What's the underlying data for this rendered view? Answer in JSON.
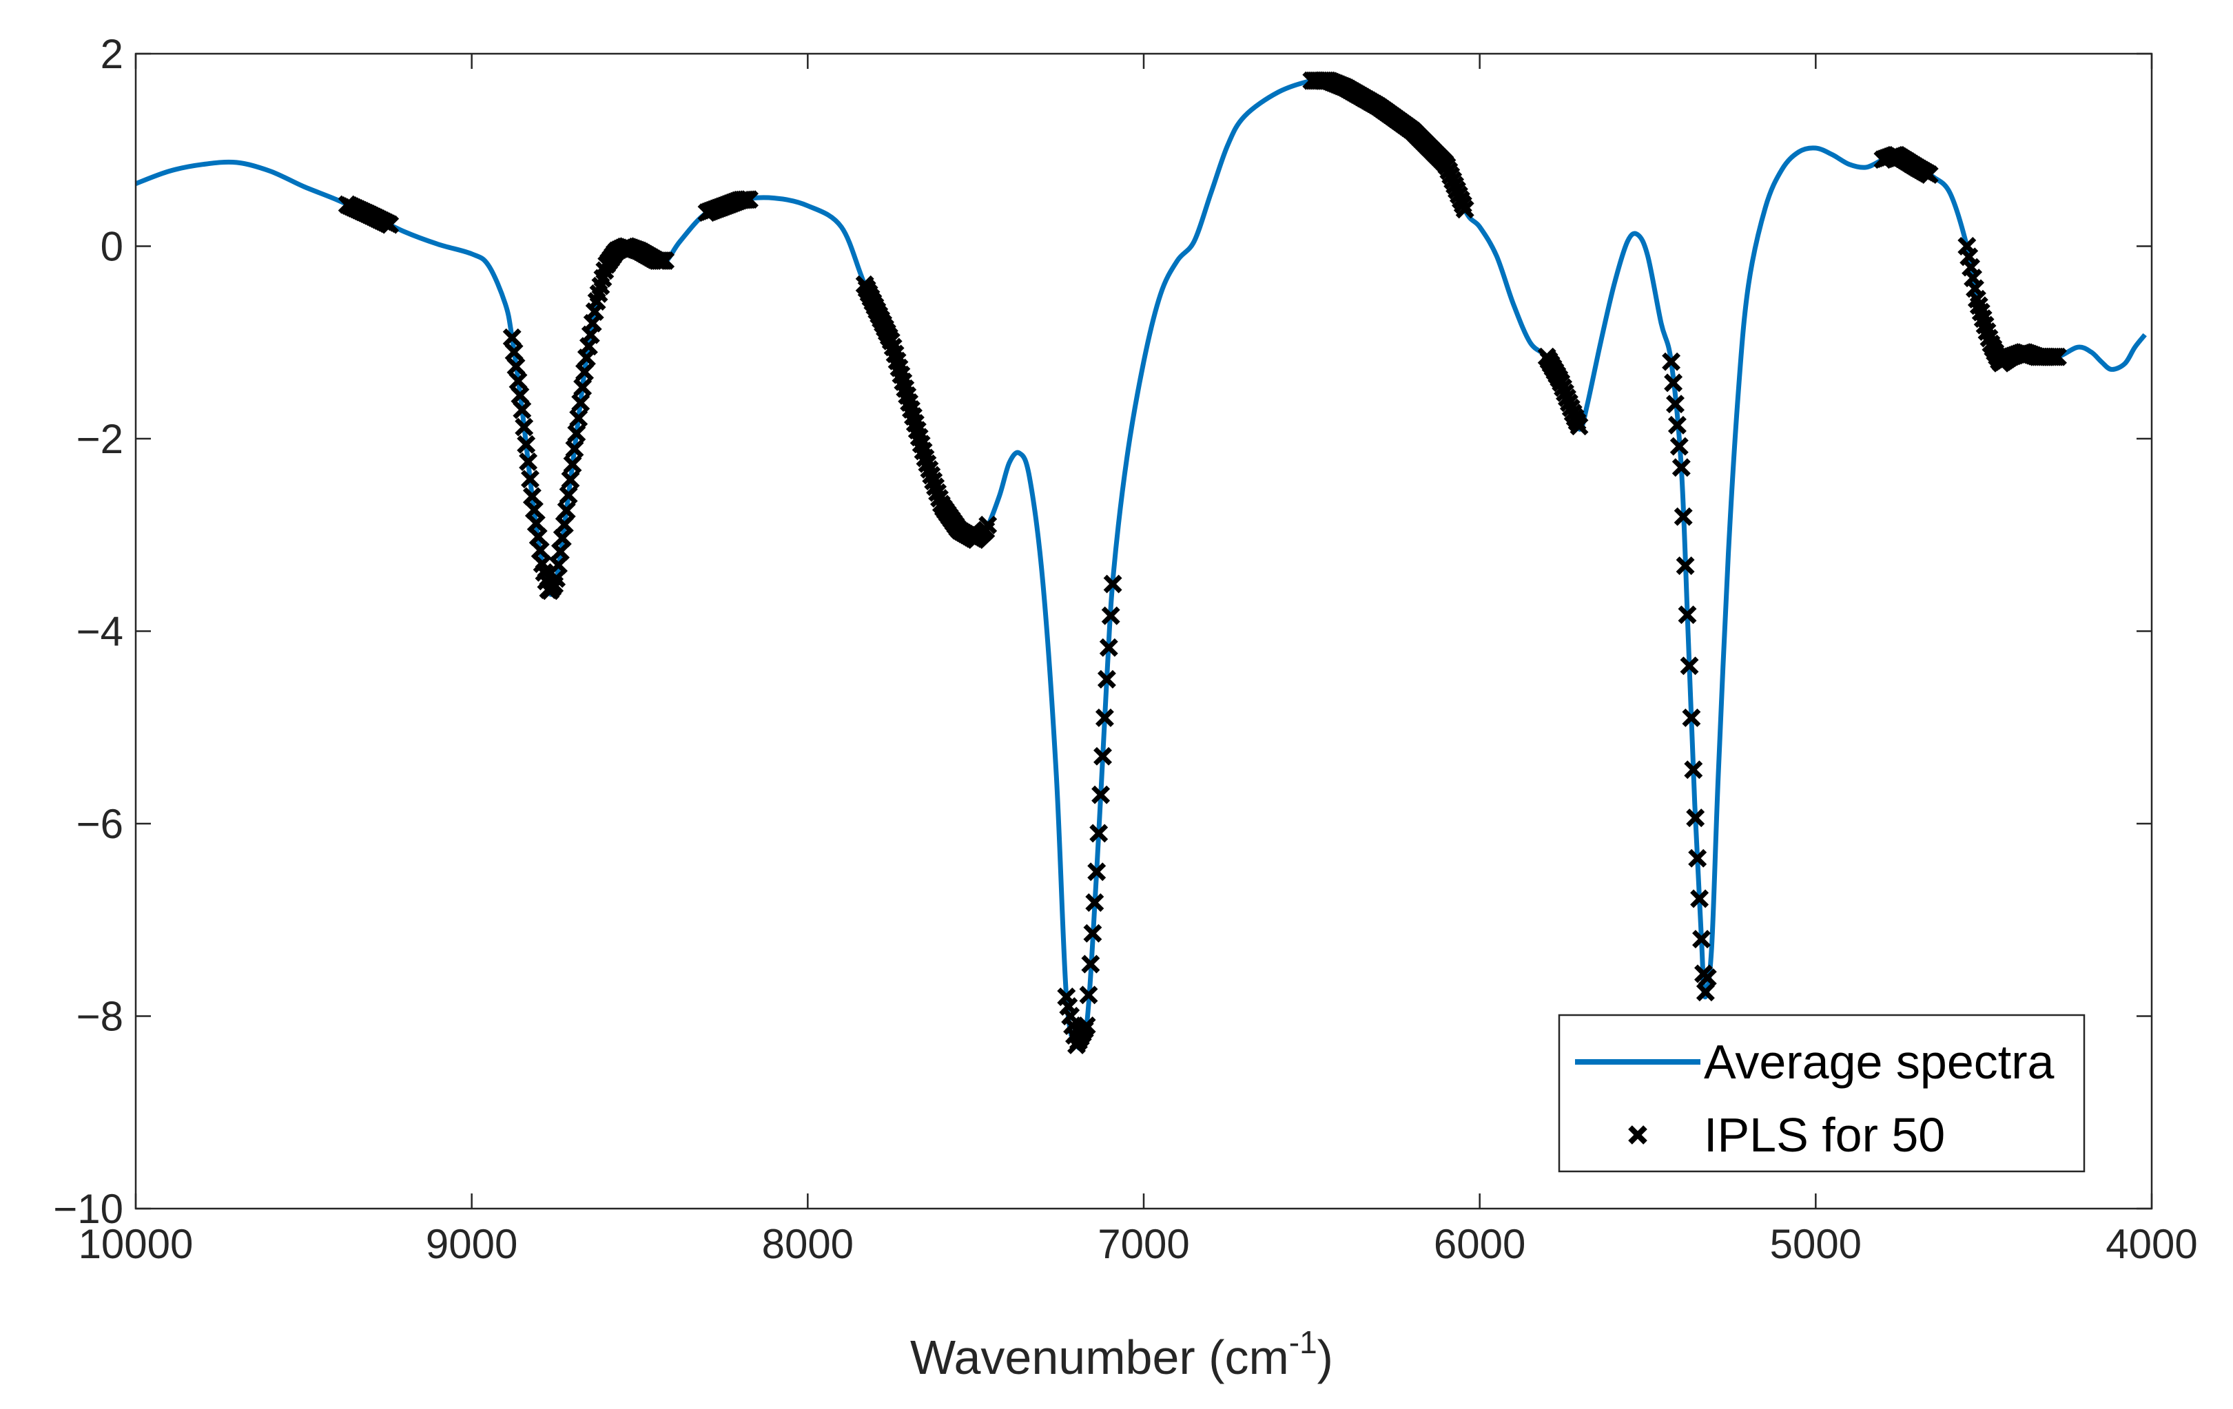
{
  "chart_data": {
    "type": "line",
    "title": "",
    "xlabel": "Wavenumber (cm",
    "xlabel_sup": "-1",
    "xlabel_close": ")",
    "ylabel": "",
    "xlim": [
      10000,
      4000
    ],
    "ylim": [
      -10,
      2
    ],
    "x_reversed": true,
    "xticks": [
      10000,
      9000,
      8000,
      7000,
      6000,
      5000,
      4000
    ],
    "xtick_labels": [
      "10000",
      "9000",
      "8000",
      "7000",
      "6000",
      "5000",
      "4000"
    ],
    "yticks": [
      2,
      0,
      -2,
      -4,
      -6,
      -8,
      -10
    ],
    "ytick_labels": [
      "2",
      "0",
      "−2",
      "−4",
      "−6",
      "−8",
      "−10"
    ],
    "grid": false,
    "legend_position": "bottom-right",
    "series": [
      {
        "name": "Average spectra",
        "style": "line",
        "color": "#0072BD",
        "points": [
          [
            10000,
            0.65
          ],
          [
            9900,
            0.78
          ],
          [
            9800,
            0.85
          ],
          [
            9700,
            0.87
          ],
          [
            9600,
            0.78
          ],
          [
            9500,
            0.62
          ],
          [
            9400,
            0.48
          ],
          [
            9300,
            0.32
          ],
          [
            9200,
            0.15
          ],
          [
            9100,
            0.02
          ],
          [
            9000,
            -0.08
          ],
          [
            8950,
            -0.2
          ],
          [
            8900,
            -0.6
          ],
          [
            8880,
            -0.95
          ],
          [
            8850,
            -1.7
          ],
          [
            8820,
            -2.6
          ],
          [
            8790,
            -3.3
          ],
          [
            8770,
            -3.6
          ],
          [
            8750,
            -3.5
          ],
          [
            8720,
            -2.8
          ],
          [
            8690,
            -2.0
          ],
          [
            8660,
            -1.2
          ],
          [
            8630,
            -0.6
          ],
          [
            8600,
            -0.2
          ],
          [
            8570,
            -0.05
          ],
          [
            8540,
            0.0
          ],
          [
            8500,
            -0.05
          ],
          [
            8450,
            -0.15
          ],
          [
            8420,
            -0.15
          ],
          [
            8380,
            0.05
          ],
          [
            8300,
            0.35
          ],
          [
            8200,
            0.48
          ],
          [
            8100,
            0.5
          ],
          [
            8000,
            0.42
          ],
          [
            7900,
            0.2
          ],
          [
            7830,
            -0.4
          ],
          [
            7750,
            -1.0
          ],
          [
            7700,
            -1.6
          ],
          [
            7650,
            -2.2
          ],
          [
            7600,
            -2.7
          ],
          [
            7550,
            -2.95
          ],
          [
            7500,
            -3.05
          ],
          [
            7470,
            -2.95
          ],
          [
            7430,
            -2.6
          ],
          [
            7400,
            -2.25
          ],
          [
            7370,
            -2.15
          ],
          [
            7340,
            -2.4
          ],
          [
            7300,
            -3.5
          ],
          [
            7260,
            -5.5
          ],
          [
            7230,
            -7.8
          ],
          [
            7200,
            -8.3
          ],
          [
            7170,
            -8.1
          ],
          [
            7140,
            -6.5
          ],
          [
            7110,
            -4.5
          ],
          [
            7090,
            -3.4
          ],
          [
            7050,
            -2.2
          ],
          [
            7000,
            -1.2
          ],
          [
            6950,
            -0.5
          ],
          [
            6900,
            -0.15
          ],
          [
            6850,
            0.05
          ],
          [
            6800,
            0.55
          ],
          [
            6750,
            1.05
          ],
          [
            6700,
            1.35
          ],
          [
            6600,
            1.6
          ],
          [
            6500,
            1.72
          ],
          [
            6450,
            1.72
          ],
          [
            6400,
            1.65
          ],
          [
            6300,
            1.45
          ],
          [
            6200,
            1.2
          ],
          [
            6100,
            0.85
          ],
          [
            6040,
            0.35
          ],
          [
            6000,
            0.2
          ],
          [
            5950,
            -0.1
          ],
          [
            5900,
            -0.6
          ],
          [
            5850,
            -1.0
          ],
          [
            5800,
            -1.15
          ],
          [
            5760,
            -1.4
          ],
          [
            5720,
            -1.75
          ],
          [
            5700,
            -1.9
          ],
          [
            5680,
            -1.65
          ],
          [
            5640,
            -1.0
          ],
          [
            5600,
            -0.4
          ],
          [
            5560,
            0.05
          ],
          [
            5530,
            0.12
          ],
          [
            5500,
            -0.1
          ],
          [
            5460,
            -0.8
          ],
          [
            5430,
            -1.2
          ],
          [
            5400,
            -2.3
          ],
          [
            5380,
            -4.0
          ],
          [
            5360,
            -5.8
          ],
          [
            5340,
            -7.2
          ],
          [
            5330,
            -7.8
          ],
          [
            5310,
            -7.3
          ],
          [
            5290,
            -5.5
          ],
          [
            5260,
            -3.2
          ],
          [
            5230,
            -1.5
          ],
          [
            5200,
            -0.4
          ],
          [
            5150,
            0.4
          ],
          [
            5100,
            0.8
          ],
          [
            5050,
            0.98
          ],
          [
            5000,
            1.02
          ],
          [
            4950,
            0.95
          ],
          [
            4900,
            0.85
          ],
          [
            4850,
            0.82
          ],
          [
            4800,
            0.9
          ],
          [
            4760,
            0.95
          ],
          [
            4700,
            0.82
          ],
          [
            4650,
            0.72
          ],
          [
            4600,
            0.55
          ],
          [
            4550,
            0.0
          ],
          [
            4520,
            -0.55
          ],
          [
            4480,
            -1.0
          ],
          [
            4450,
            -1.22
          ],
          [
            4420,
            -1.15
          ],
          [
            4380,
            -1.1
          ],
          [
            4340,
            -1.15
          ],
          [
            4280,
            -1.15
          ],
          [
            4220,
            -1.05
          ],
          [
            4180,
            -1.1
          ],
          [
            4150,
            -1.2
          ],
          [
            4120,
            -1.28
          ],
          [
            4080,
            -1.22
          ],
          [
            4050,
            -1.05
          ],
          [
            4020,
            -0.92
          ]
        ]
      },
      {
        "name": "IPLS for 50",
        "style": "marker-x",
        "color": "#000000",
        "segments": [
          [
            9370,
            9240
          ],
          [
            8880,
            8420
          ],
          [
            8300,
            8170
          ],
          [
            7830,
            7460
          ],
          [
            7230,
            7090
          ],
          [
            6500,
            6040
          ],
          [
            5800,
            5700
          ],
          [
            5430,
            5320
          ],
          [
            4800,
            4660
          ],
          [
            4550,
            4280
          ]
        ]
      }
    ]
  },
  "legend": {
    "items": [
      {
        "label": "Average spectra",
        "kind": "line",
        "color": "#0072BD"
      },
      {
        "label": "IPLS for 50",
        "kind": "marker",
        "color": "#000000"
      }
    ]
  }
}
